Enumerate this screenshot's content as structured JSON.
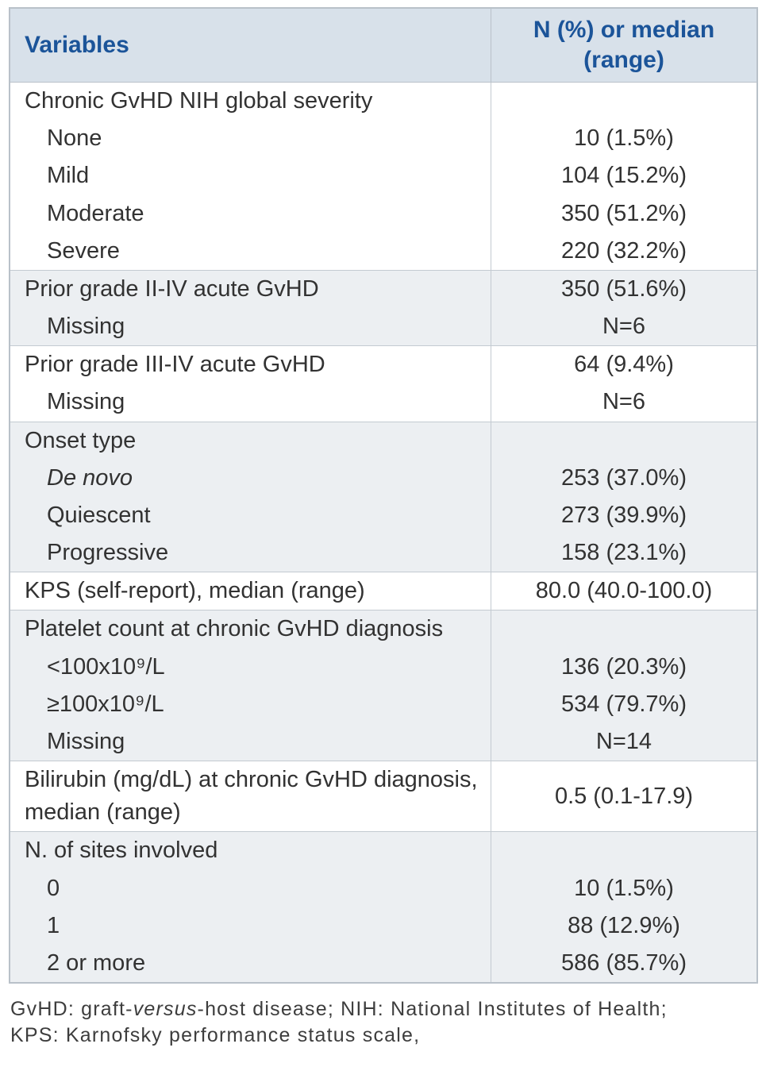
{
  "colors": {
    "header_background": "#d8e1ea",
    "header_text": "#1b5499",
    "shaded_section_background": "#eceff2",
    "border": "#b9c1c9",
    "body_text": "#323232"
  },
  "table": {
    "header": {
      "variables": "Variables",
      "values": "N (%) or median (range)"
    },
    "sections": [
      {
        "name": "chronic-gvhd-nih-global-severity",
        "rows": [
          {
            "label": "Chronic GvHD NIH global severity",
            "value": ""
          },
          {
            "label": "None",
            "value": "10 (1.5%)"
          },
          {
            "label": "Mild",
            "value": "104 (15.2%)"
          },
          {
            "label": "Moderate",
            "value": "350 (51.2%)"
          },
          {
            "label": "Severe",
            "value": "220 (32.2%)"
          }
        ]
      },
      {
        "name": "prior-grade-ii-iv-acute-gvhd",
        "rows": [
          {
            "label": "Prior grade II-IV acute GvHD",
            "value": "350 (51.6%)"
          },
          {
            "label": "Missing",
            "value": "N=6"
          }
        ]
      },
      {
        "name": "prior-grade-iii-iv-acute-gvhd",
        "rows": [
          {
            "label": "Prior grade III-IV acute GvHD",
            "value": "64 (9.4%)"
          },
          {
            "label": "Missing",
            "value": "N=6"
          }
        ]
      },
      {
        "name": "onset-type",
        "rows": [
          {
            "label": "Onset type",
            "value": ""
          },
          {
            "label": "De novo",
            "value": "253 (37.0%)"
          },
          {
            "label": "Quiescent",
            "value": "273 (39.9%)"
          },
          {
            "label": "Progressive",
            "value": "158 (23.1%)"
          }
        ]
      },
      {
        "name": "kps",
        "rows": [
          {
            "label": "KPS (self-report), median (range)",
            "value": "80.0 (40.0-100.0)"
          }
        ]
      },
      {
        "name": "platelet-count",
        "rows": [
          {
            "label": "Platelet count at chronic GvHD diagnosis",
            "value": ""
          },
          {
            "label": "<100x10⁹/L",
            "value": "136 (20.3%)"
          },
          {
            "label": "≥100x10⁹/L",
            "value": "534 (79.7%)"
          },
          {
            "label": "Missing",
            "value": "N=14"
          }
        ]
      },
      {
        "name": "bilirubin",
        "rows": [
          {
            "label": "Bilirubin (mg/dL) at chronic GvHD diagnosis, median (range)",
            "value": "0.5 (0.1-17.9)"
          }
        ]
      },
      {
        "name": "n-of-sites-involved",
        "rows": [
          {
            "label": "N. of sites involved",
            "value": ""
          },
          {
            "label": "0",
            "value": "10 (1.5%)"
          },
          {
            "label": "1",
            "value": "88 (12.9%)"
          },
          {
            "label": "2 or more",
            "value": "586 (85.7%)"
          }
        ]
      }
    ]
  },
  "footnote": {
    "line1_prefix": "GvHD: graft-",
    "line1_italic": "versus",
    "line1_suffix": "-host disease; NIH: National Institutes of Health;",
    "line2": "KPS: Karnofsky performance status scale,"
  }
}
